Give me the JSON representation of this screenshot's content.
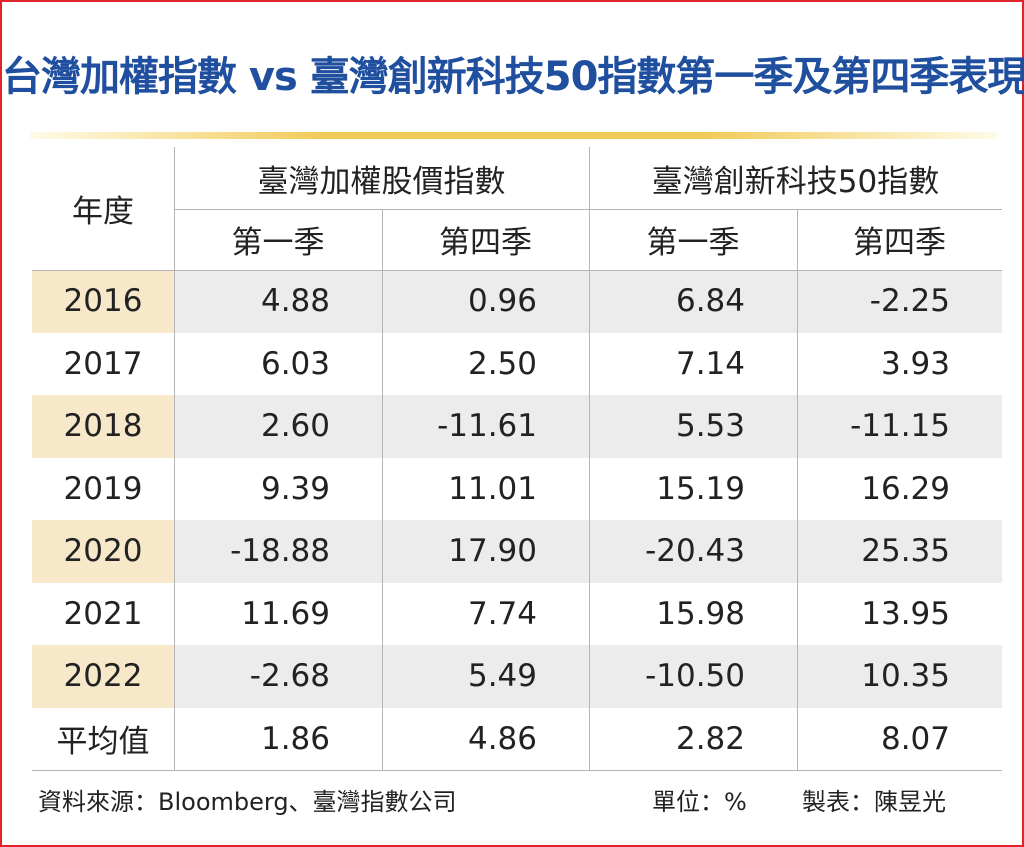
{
  "title": "台灣加權指數 vs 臺灣創新科技50指數第一季及第四季表現",
  "table": {
    "year_header": "年度",
    "groups": [
      "臺灣加權股價指數",
      "臺灣創新科技50指數"
    ],
    "subheaders": [
      "第一季",
      "第四季",
      "第一季",
      "第四季"
    ],
    "rows": [
      [
        "2016",
        "4.88",
        "0.96",
        "6.84",
        "-2.25"
      ],
      [
        "2017",
        "6.03",
        "2.50",
        "7.14",
        "3.93"
      ],
      [
        "2018",
        "2.60",
        "-11.61",
        "5.53",
        "-11.15"
      ],
      [
        "2019",
        "9.39",
        "11.01",
        "15.19",
        "16.29"
      ],
      [
        "2020",
        "-18.88",
        "17.90",
        "-20.43",
        "25.35"
      ],
      [
        "2021",
        "11.69",
        "7.74",
        "15.98",
        "13.95"
      ],
      [
        "2022",
        "-2.68",
        "5.49",
        "-10.50",
        "10.35"
      ],
      [
        "平均值",
        "1.86",
        "4.86",
        "2.82",
        "8.07"
      ]
    ]
  },
  "footer": {
    "source": "資料來源：Bloomberg、臺灣指數公司",
    "unit": "單位：%",
    "maker": "製表：陳昱光"
  }
}
